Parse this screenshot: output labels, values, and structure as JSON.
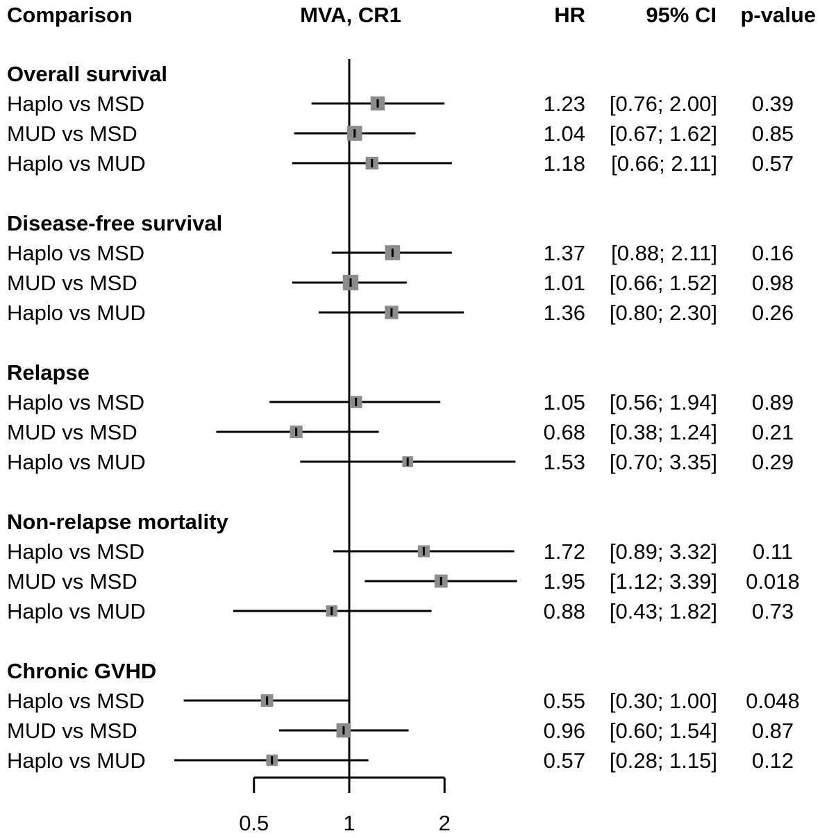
{
  "headers": {
    "comparison": "Comparison",
    "plot": "MVA, CR1",
    "hr": "HR",
    "ci": "95% CI",
    "p": "p-value"
  },
  "chart_data": {
    "type": "forest",
    "title": "MVA, CR1",
    "scale": "log",
    "reference_line": 1,
    "ticks": [
      0.5,
      1,
      2
    ],
    "tick_labels": [
      "0.5",
      "1",
      "2"
    ],
    "groups": [
      {
        "name": "Overall survival",
        "rows": [
          {
            "label": "Haplo vs MSD",
            "hr": 1.23,
            "lower": 0.76,
            "upper": 2.0,
            "hr_text": "1.23",
            "ci_text": "[0.76; 2.00]",
            "p_text": "0.39"
          },
          {
            "label": "MUD vs MSD",
            "hr": 1.04,
            "lower": 0.67,
            "upper": 1.62,
            "hr_text": "1.04",
            "ci_text": "[0.67; 1.62]",
            "p_text": "0.85"
          },
          {
            "label": "Haplo vs MUD",
            "hr": 1.18,
            "lower": 0.66,
            "upper": 2.11,
            "hr_text": "1.18",
            "ci_text": "[0.66; 2.11]",
            "p_text": "0.57"
          }
        ]
      },
      {
        "name": "Disease-free survival",
        "rows": [
          {
            "label": "Haplo vs MSD",
            "hr": 1.37,
            "lower": 0.88,
            "upper": 2.11,
            "hr_text": "1.37",
            "ci_text": "[0.88; 2.11]",
            "p_text": "0.16"
          },
          {
            "label": "MUD vs MSD",
            "hr": 1.01,
            "lower": 0.66,
            "upper": 1.52,
            "hr_text": "1.01",
            "ci_text": "[0.66; 1.52]",
            "p_text": "0.98"
          },
          {
            "label": "Haplo vs MUD",
            "hr": 1.36,
            "lower": 0.8,
            "upper": 2.3,
            "hr_text": "1.36",
            "ci_text": "[0.80; 2.30]",
            "p_text": "0.26"
          }
        ]
      },
      {
        "name": "Relapse",
        "rows": [
          {
            "label": "Haplo vs MSD",
            "hr": 1.05,
            "lower": 0.56,
            "upper": 1.94,
            "hr_text": "1.05",
            "ci_text": "[0.56; 1.94]",
            "p_text": "0.89"
          },
          {
            "label": "MUD vs MSD",
            "hr": 0.68,
            "lower": 0.38,
            "upper": 1.24,
            "hr_text": "0.68",
            "ci_text": "[0.38; 1.24]",
            "p_text": "0.21"
          },
          {
            "label": "Haplo vs MUD",
            "hr": 1.53,
            "lower": 0.7,
            "upper": 3.35,
            "hr_text": "1.53",
            "ci_text": "[0.70; 3.35]",
            "p_text": "0.29"
          }
        ]
      },
      {
        "name": "Non-relapse mortality",
        "rows": [
          {
            "label": "Haplo vs MSD",
            "hr": 1.72,
            "lower": 0.89,
            "upper": 3.32,
            "hr_text": "1.72",
            "ci_text": "[0.89; 3.32]",
            "p_text": "0.11"
          },
          {
            "label": "MUD vs MSD",
            "hr": 1.95,
            "lower": 1.12,
            "upper": 3.39,
            "hr_text": "1.95",
            "ci_text": "[1.12; 3.39]",
            "p_text": "0.018"
          },
          {
            "label": "Haplo vs MUD",
            "hr": 0.88,
            "lower": 0.43,
            "upper": 1.82,
            "hr_text": "0.88",
            "ci_text": "[0.43; 1.82]",
            "p_text": "0.73"
          }
        ]
      },
      {
        "name": "Chronic GVHD",
        "rows": [
          {
            "label": "Haplo vs MSD",
            "hr": 0.55,
            "lower": 0.3,
            "upper": 1.0,
            "hr_text": "0.55",
            "ci_text": "[0.30; 1.00]",
            "p_text": "0.048"
          },
          {
            "label": "MUD vs MSD",
            "hr": 0.96,
            "lower": 0.6,
            "upper": 1.54,
            "hr_text": "0.96",
            "ci_text": "[0.60; 1.54]",
            "p_text": "0.87"
          },
          {
            "label": "Haplo vs MUD",
            "hr": 0.57,
            "lower": 0.28,
            "upper": 1.15,
            "hr_text": "0.57",
            "ci_text": "[0.28; 1.15]",
            "p_text": "0.12"
          }
        ]
      }
    ]
  },
  "colors": {
    "box": "#8c8c8c",
    "line": "#000000",
    "text": "#000000"
  }
}
